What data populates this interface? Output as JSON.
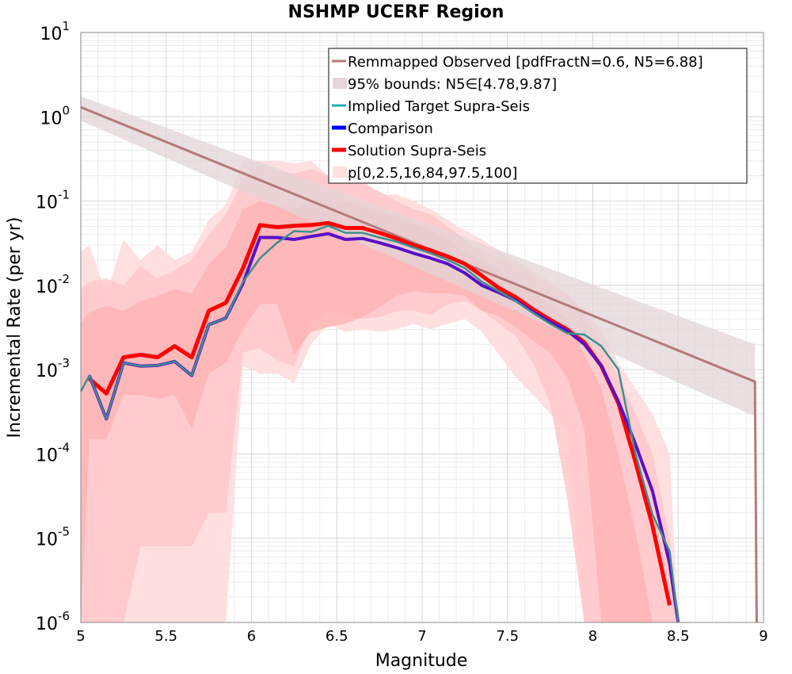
{
  "chart_data": {
    "type": "line",
    "title": "NSHMP UCERF Region",
    "xlabel": "Magnitude",
    "ylabel": "Incremental Rate (per yr)",
    "xlim": [
      5,
      9
    ],
    "ylim": [
      1e-06,
      10
    ],
    "yscale": "log",
    "grid": true,
    "legend_position": "top-right",
    "x_ticks": [
      "5",
      "5.5",
      "6",
      "6.5",
      "7",
      "7.5",
      "8",
      "8.5",
      "9"
    ],
    "y_ticks": [
      {
        "base": "10",
        "exp": "1"
      },
      {
        "base": "10",
        "exp": "0"
      },
      {
        "base": "10",
        "exp": "-1"
      },
      {
        "base": "10",
        "exp": "-2"
      },
      {
        "base": "10",
        "exp": "-3"
      },
      {
        "base": "10",
        "exp": "-4"
      },
      {
        "base": "10",
        "exp": "-5"
      },
      {
        "base": "10",
        "exp": "-6"
      }
    ],
    "legend": [
      {
        "label": "Remmapped Observed [pdfFractN=0.6, N5=6.88]",
        "color": "#b57a7a",
        "kind": "line"
      },
      {
        "label": "95% bounds: N5∈[4.78,9.87]",
        "color": "#e6d6d9",
        "kind": "band"
      },
      {
        "label": "Implied Target Supra-Seis",
        "color": "#1fb0b0",
        "kind": "line"
      },
      {
        "label": "Comparison",
        "color": "#0000ff",
        "kind": "thick"
      },
      {
        "label": "Solution Supra-Seis",
        "color": "#ff0000",
        "kind": "thick"
      },
      {
        "label": "p[0,2.5,16,84,97.5,100]",
        "color": "#ffdede",
        "kind": "band"
      }
    ],
    "colors": {
      "observed": "#b57a7a",
      "observed_band": "#e3d4d7",
      "target": "#3e8e8e",
      "comparison": "#5a0fc8",
      "solution": "#ff0000",
      "band_outer": "#ffdfe0",
      "band_mid": "#ffc8ca",
      "band_inner": "#ffb3b4"
    },
    "series": [
      {
        "name": "Remmapped Observed [pdfFractN=0.6, N5=6.88]",
        "x": [
          5.0,
          8.95,
          8.96
        ],
        "y": [
          1.3,
          0.00072,
          1e-06
        ]
      },
      {
        "name": "95% bounds: N5∈[4.78,9.87]",
        "x": [
          5.0,
          8.95
        ],
        "low": [
          0.9,
          0.00028
        ],
        "high": [
          1.75,
          0.002
        ]
      },
      {
        "name": "Implied Target Supra-Seis",
        "x": [
          5.0,
          5.05,
          5.15,
          5.25,
          5.35,
          5.45,
          5.55,
          5.65,
          5.75,
          5.85,
          5.95,
          6.05,
          6.15,
          6.25,
          6.35,
          6.45,
          6.55,
          6.65,
          6.75,
          6.85,
          6.95,
          7.05,
          7.15,
          7.25,
          7.35,
          7.45,
          7.55,
          7.65,
          7.75,
          7.85,
          7.95,
          8.05,
          8.15,
          8.25,
          8.35,
          8.45,
          8.5
        ],
        "y": [
          0.00055,
          0.00085,
          0.00026,
          0.0012,
          0.0011,
          0.00112,
          0.00125,
          0.00085,
          0.0034,
          0.0041,
          0.011,
          0.021,
          0.032,
          0.044,
          0.043,
          0.051,
          0.042,
          0.042,
          0.037,
          0.033,
          0.028,
          0.024,
          0.02,
          0.016,
          0.011,
          0.0085,
          0.0065,
          0.0047,
          0.0035,
          0.0027,
          0.0026,
          0.0019,
          0.001,
          0.0001,
          1.9e-05,
          7e-06,
          1e-06
        ]
      },
      {
        "name": "Comparison",
        "x": [
          5.05,
          5.15,
          5.25,
          5.35,
          5.45,
          5.55,
          5.65,
          5.75,
          5.85,
          5.95,
          6.05,
          6.15,
          6.25,
          6.35,
          6.45,
          6.55,
          6.65,
          6.75,
          6.85,
          6.95,
          7.05,
          7.15,
          7.25,
          7.35,
          7.45,
          7.55,
          7.65,
          7.75,
          7.85,
          7.95,
          8.05,
          8.15,
          8.25,
          8.35,
          8.45,
          8.5
        ],
        "y": [
          0.00085,
          0.00026,
          0.0012,
          0.0011,
          0.00112,
          0.00125,
          0.00085,
          0.0034,
          0.0041,
          0.0105,
          0.037,
          0.037,
          0.035,
          0.038,
          0.041,
          0.035,
          0.036,
          0.032,
          0.028,
          0.024,
          0.021,
          0.018,
          0.014,
          0.01,
          0.0082,
          0.0066,
          0.0048,
          0.0037,
          0.0029,
          0.002,
          0.0011,
          0.00042,
          0.00013,
          3.6e-05,
          5e-06,
          1e-06
        ]
      },
      {
        "name": "Solution Supra-Seis",
        "x": [
          5.05,
          5.15,
          5.25,
          5.35,
          5.45,
          5.55,
          5.65,
          5.75,
          5.85,
          5.95,
          6.05,
          6.15,
          6.25,
          6.35,
          6.45,
          6.55,
          6.65,
          6.75,
          6.85,
          6.95,
          7.05,
          7.15,
          7.25,
          7.35,
          7.45,
          7.55,
          7.65,
          7.75,
          7.85,
          7.95,
          8.05,
          8.15,
          8.25,
          8.35,
          8.45
        ],
        "y": [
          0.00078,
          0.00052,
          0.0014,
          0.0015,
          0.0014,
          0.0019,
          0.0014,
          0.005,
          0.0062,
          0.016,
          0.052,
          0.049,
          0.051,
          0.052,
          0.055,
          0.048,
          0.048,
          0.042,
          0.036,
          0.03,
          0.026,
          0.022,
          0.018,
          0.013,
          0.0093,
          0.0072,
          0.0052,
          0.0039,
          0.003,
          0.0021,
          0.0011,
          0.0004,
          8e-05,
          1.4e-05,
          1.6e-06
        ]
      },
      {
        "name": "p[0,2.5,16,84,97.5,100]",
        "x": [
          5.0,
          5.05,
          5.15,
          5.25,
          5.35,
          5.45,
          5.55,
          5.65,
          5.75,
          5.85,
          5.95,
          6.05,
          6.15,
          6.25,
          6.35,
          6.45,
          6.55,
          6.65,
          6.75,
          6.85,
          6.95,
          7.05,
          7.15,
          7.25,
          7.35,
          7.45,
          7.55,
          7.65,
          7.75,
          7.85,
          7.95,
          8.05,
          8.15,
          8.25,
          8.35,
          8.45,
          8.5
        ],
        "p0": [
          1e-06,
          1e-06,
          1e-06,
          1e-06,
          1e-06,
          1e-06,
          1e-06,
          1e-06,
          1e-06,
          1e-06,
          0.0011,
          0.0009,
          0.0009,
          0.0007,
          0.002,
          0.0035,
          0.0028,
          0.003,
          0.0028,
          0.003,
          0.0035,
          0.003,
          0.0035,
          0.004,
          0.0028,
          0.0015,
          0.0008,
          0.0005,
          0.0003,
          0.0002,
          1e-06,
          1e-06,
          1e-06,
          1e-06,
          1e-06,
          1e-06,
          1e-06
        ],
        "p2_5": [
          1e-06,
          1e-06,
          1e-06,
          1e-06,
          8e-06,
          8e-06,
          8e-06,
          8e-06,
          2e-05,
          2e-05,
          0.0016,
          0.0018,
          0.0013,
          0.0011,
          0.0035,
          0.005,
          0.0045,
          0.004,
          0.0042,
          0.005,
          0.005,
          0.0045,
          0.006,
          0.0065,
          0.005,
          0.0035,
          0.0025,
          0.0012,
          0.0004,
          3e-05,
          1e-06,
          1e-06,
          1e-06,
          1e-06,
          1e-06,
          1e-06,
          1e-06
        ],
        "p16": [
          1e-06,
          0.00015,
          0.00015,
          0.0005,
          0.0005,
          0.00045,
          0.0005,
          0.0002,
          0.0009,
          0.0012,
          0.003,
          0.006,
          0.006,
          0.0015,
          0.0028,
          0.0032,
          0.0035,
          0.0042,
          0.0055,
          0.0075,
          0.0085,
          0.008,
          0.008,
          0.0075,
          0.005,
          0.0043,
          0.0032,
          0.0022,
          0.0016,
          0.0008,
          0.0002,
          1e-06,
          1e-06,
          1e-06,
          1e-06,
          1e-06,
          1e-06
        ],
        "p84": [
          0.0035,
          0.0048,
          0.0057,
          0.005,
          0.0065,
          0.0075,
          0.009,
          0.008,
          0.018,
          0.028,
          0.08,
          0.1,
          0.088,
          0.08,
          0.1,
          0.1,
          0.1,
          0.088,
          0.075,
          0.065,
          0.055,
          0.045,
          0.035,
          0.025,
          0.02,
          0.015,
          0.011,
          0.008,
          0.006,
          0.004,
          0.0015,
          0.0006,
          0.0001,
          1.2e-05,
          1e-06,
          1e-06,
          1e-06
        ],
        "p97_5": [
          0.009,
          0.011,
          0.012,
          0.01,
          0.017,
          0.012,
          0.015,
          0.02,
          0.04,
          0.07,
          0.17,
          0.27,
          0.22,
          0.21,
          0.24,
          0.2,
          0.18,
          0.16,
          0.13,
          0.1,
          0.08,
          0.07,
          0.05,
          0.035,
          0.025,
          0.02,
          0.018,
          0.013,
          0.01,
          0.008,
          0.0045,
          0.002,
          0.0008,
          0.0003,
          0.0001,
          1e-05,
          1e-06
        ],
        "p100": [
          0.025,
          0.03,
          0.008,
          0.035,
          0.02,
          0.03,
          0.02,
          0.025,
          0.06,
          0.09,
          0.3,
          0.3,
          0.3,
          0.28,
          0.3,
          0.2,
          0.2,
          0.18,
          0.12,
          0.12,
          0.1,
          0.08,
          0.06,
          0.045,
          0.035,
          0.026,
          0.02,
          0.015,
          0.011,
          0.008,
          0.005,
          0.003,
          0.0012,
          0.0006,
          0.0003,
          0.0001,
          1e-06
        ]
      }
    ]
  }
}
